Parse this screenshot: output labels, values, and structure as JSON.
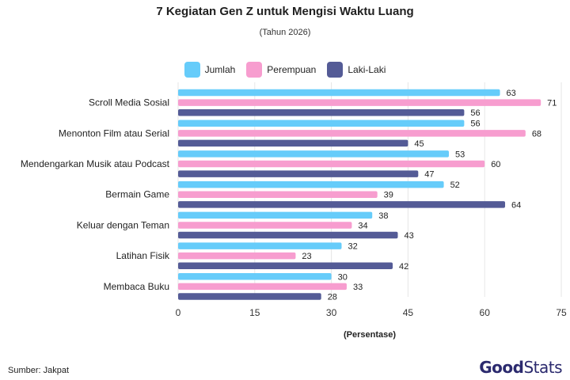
{
  "chart_data": {
    "type": "bar",
    "orientation": "horizontal",
    "title": "7 Kegiatan Gen Z untuk Mengisi Waktu Luang",
    "subtitle": "(Tahun 2026)",
    "xlabel": "(Persentase)",
    "xlim": [
      0,
      75
    ],
    "xticks": [
      0,
      15,
      30,
      45,
      60,
      75
    ],
    "grid": true,
    "legend_position": "top",
    "categories": [
      "Scroll Media Sosial",
      "Menonton Film atau Serial",
      "Mendengarkan Musik atau Podcast",
      "Bermain Game",
      "Keluar dengan Teman",
      "Latihan Fisik",
      "Membaca Buku"
    ],
    "series": [
      {
        "name": "Jumlah",
        "color": "#66ccfa",
        "values": [
          63,
          56,
          53,
          52,
          38,
          32,
          30
        ]
      },
      {
        "name": "Perempuan",
        "color": "#f79dcf",
        "values": [
          71,
          68,
          60,
          39,
          34,
          23,
          33
        ]
      },
      {
        "name": "Laki-Laki",
        "color": "#545b96",
        "values": [
          56,
          45,
          47,
          64,
          43,
          42,
          28
        ]
      }
    ]
  },
  "footer": {
    "source": "Sumber: Jakpat",
    "brand_good": "Good",
    "brand_stats": "Stats"
  }
}
